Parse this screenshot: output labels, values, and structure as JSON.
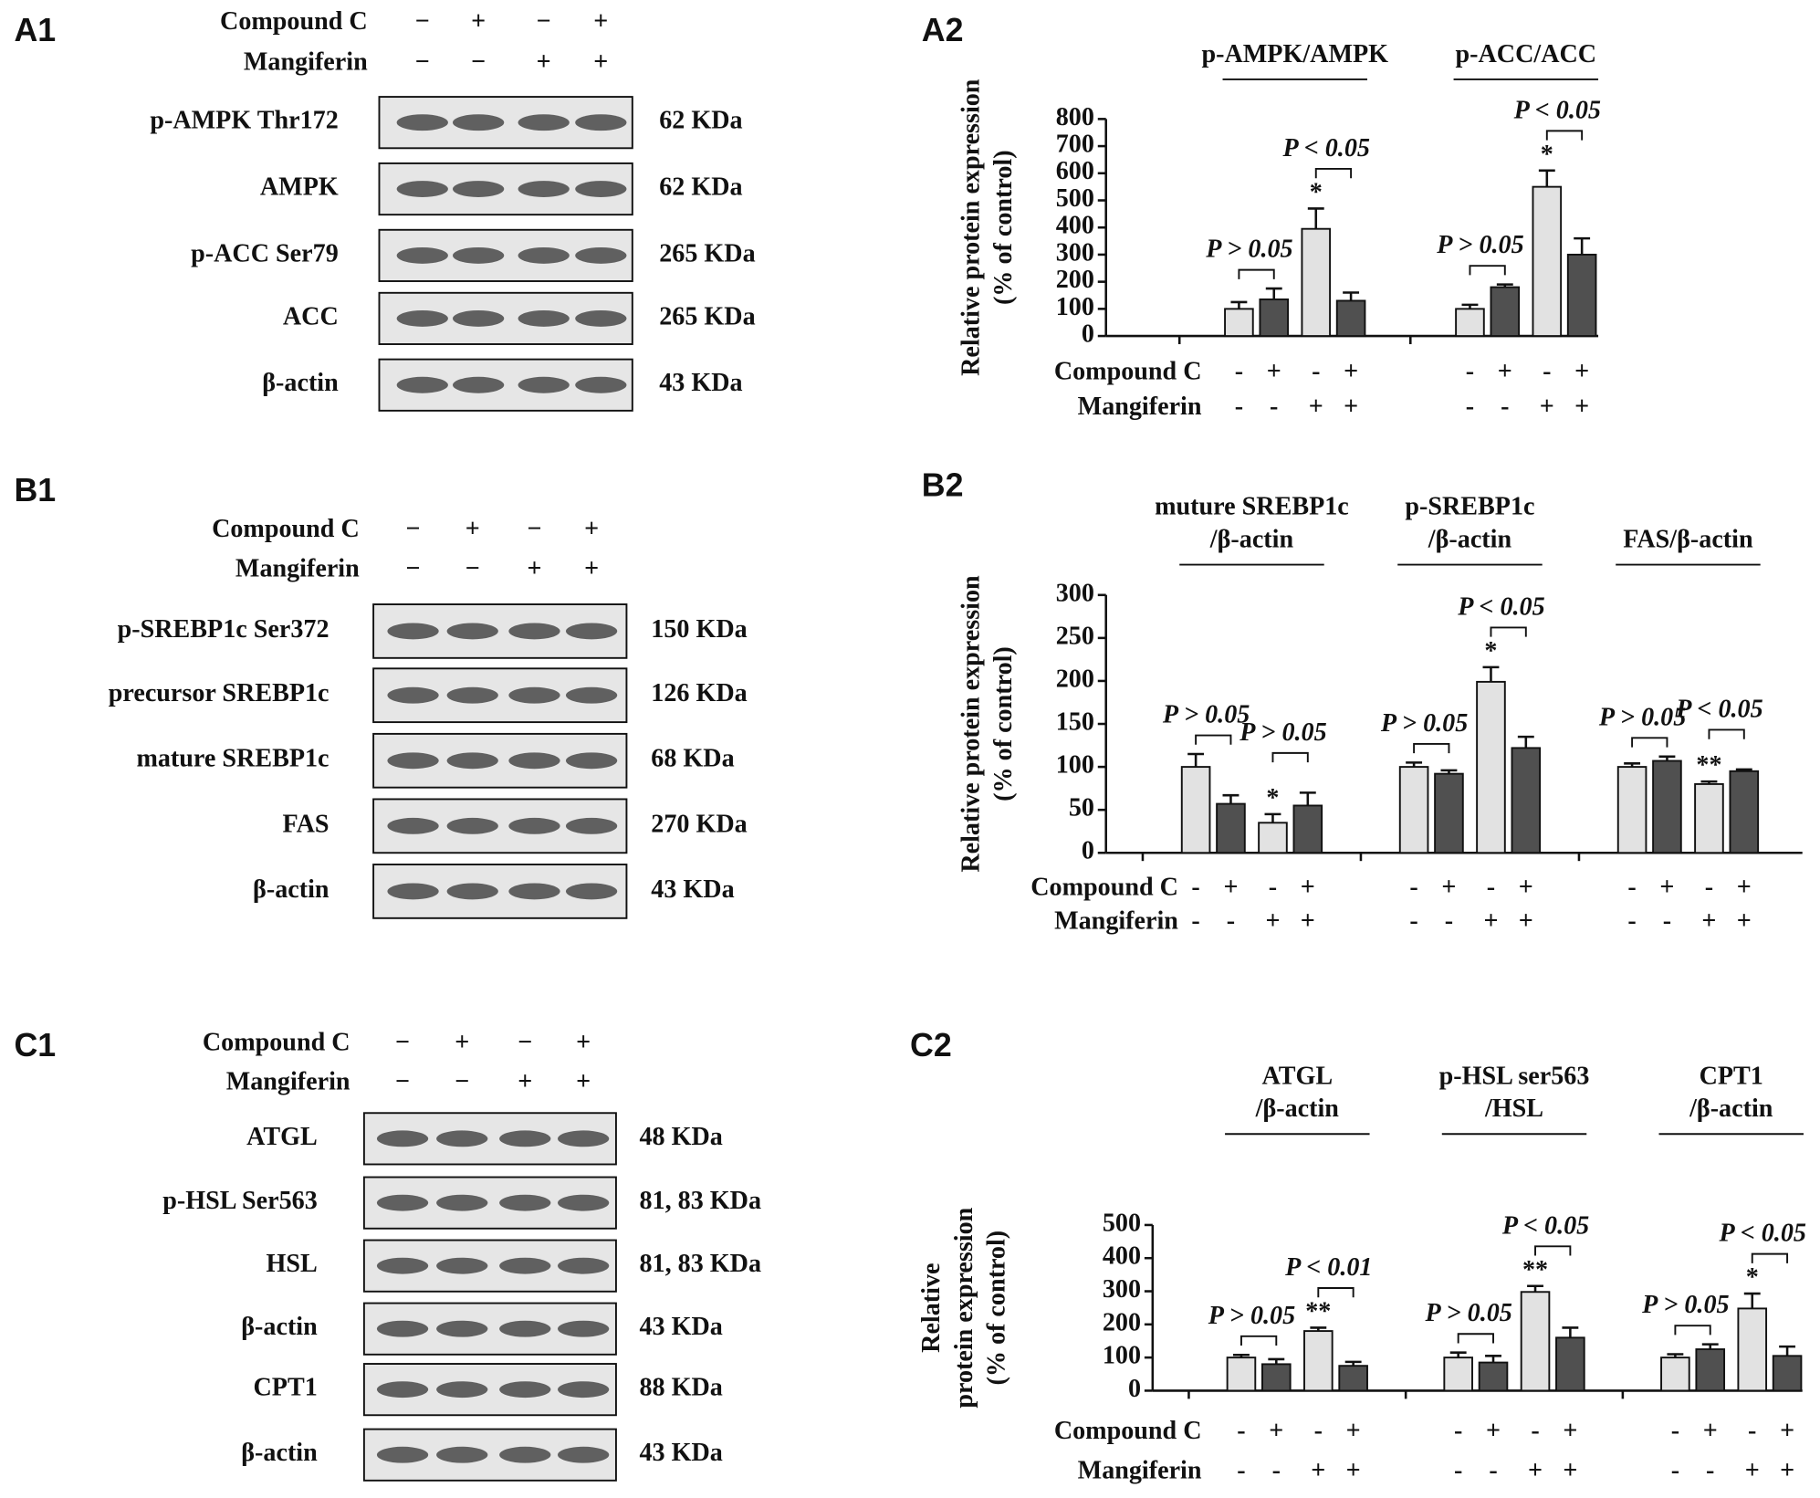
{
  "blots": [
    {
      "label": "A1",
      "treatments": [
        {
          "name": "Compound C",
          "signs": [
            "−",
            "+",
            "−",
            "+"
          ]
        },
        {
          "name": "Mangiferin",
          "signs": [
            "−",
            "−",
            "+",
            "+"
          ]
        }
      ],
      "rows": [
        {
          "protein": "p-AMPK Thr172",
          "size": "62 KDa"
        },
        {
          "protein": "AMPK",
          "size": "62 KDa"
        },
        {
          "protein": "p-ACC Ser79",
          "size": "265 KDa"
        },
        {
          "protein": "ACC",
          "size": "265 KDa"
        },
        {
          "protein": "β-actin",
          "size": "43 KDa"
        }
      ]
    },
    {
      "label": "B1",
      "treatments": [
        {
          "name": "Compound C",
          "signs": [
            "−",
            "+",
            "−",
            "+"
          ]
        },
        {
          "name": "Mangiferin",
          "signs": [
            "−",
            "−",
            "+",
            "+"
          ]
        }
      ],
      "rows": [
        {
          "protein": "p-SREBP1c Ser372",
          "size": "150 KDa"
        },
        {
          "protein": "precursor SREBP1c",
          "size": "126 KDa"
        },
        {
          "protein": "mature SREBP1c",
          "size": "68 KDa"
        },
        {
          "protein": "FAS",
          "size": "270 KDa"
        },
        {
          "protein": "β-actin",
          "size": "43 KDa"
        }
      ]
    },
    {
      "label": "C1",
      "treatments": [
        {
          "name": "Compound C",
          "signs": [
            "−",
            "+",
            "−",
            "+"
          ]
        },
        {
          "name": "Mangiferin",
          "signs": [
            "−",
            "−",
            "+",
            "+"
          ]
        }
      ],
      "rows": [
        {
          "protein": "ATGL",
          "size": "48 KDa"
        },
        {
          "protein": "p-HSL  Ser563",
          "size": "81, 83 KDa"
        },
        {
          "protein": "HSL",
          "size": "81, 83 KDa"
        },
        {
          "protein": "β-actin",
          "size": "43 KDa"
        },
        {
          "protein": "CPT1",
          "size": "88 KDa"
        },
        {
          "protein": "β-actin",
          "size": "43 KDa"
        }
      ]
    }
  ],
  "chart_data": [
    {
      "type": "bar",
      "label": "A2",
      "ylabel": [
        "Relative protein expression",
        "(% of control)"
      ],
      "ylim": [
        0,
        800
      ],
      "yticks": [
        0,
        100,
        200,
        300,
        400,
        500,
        600,
        700,
        800
      ],
      "bar_colors": [
        "#e2e2e2",
        "#505050",
        "#e2e2e2",
        "#505050"
      ],
      "treatments": [
        {
          "name": "Compound C",
          "signs": [
            "-",
            "+",
            "-",
            "+"
          ]
        },
        {
          "name": "Mangiferin",
          "signs": [
            "-",
            "-",
            "+",
            "+"
          ]
        }
      ],
      "groups": [
        {
          "title": [
            "p-AMPK/AMPK"
          ],
          "values": [
            100,
            135,
            395,
            130
          ],
          "errors": [
            25,
            40,
            75,
            30
          ],
          "stars": [
            null,
            null,
            "*",
            null
          ],
          "comparisons": [
            "P > 0.05",
            "P < 0.05"
          ]
        },
        {
          "title": [
            "p-ACC/ACC"
          ],
          "values": [
            100,
            180,
            550,
            300
          ],
          "errors": [
            15,
            10,
            60,
            60
          ],
          "stars": [
            null,
            null,
            "*",
            null
          ],
          "comparisons": [
            "P > 0.05",
            "P < 0.05"
          ]
        }
      ]
    },
    {
      "type": "bar",
      "label": "B2",
      "ylabel": [
        "Relative protein expression",
        "(% of control)"
      ],
      "ylim": [
        0,
        300
      ],
      "yticks": [
        0,
        50,
        100,
        150,
        200,
        250,
        300
      ],
      "bar_colors": [
        "#e2e2e2",
        "#505050",
        "#e2e2e2",
        "#505050"
      ],
      "treatments": [
        {
          "name": "Compound C",
          "signs": [
            "-",
            "+",
            "-",
            "+"
          ]
        },
        {
          "name": "Mangiferin",
          "signs": [
            "-",
            "-",
            "+",
            "+"
          ]
        }
      ],
      "groups": [
        {
          "title": [
            "muture SREBP1c",
            "/β-actin"
          ],
          "values": [
            100,
            57,
            35,
            55
          ],
          "errors": [
            15,
            10,
            10,
            15
          ],
          "stars": [
            null,
            null,
            "*",
            null
          ],
          "comparisons": [
            "P > 0.05",
            "P > 0.05"
          ]
        },
        {
          "title": [
            "p-SREBP1c",
            "/β-actin"
          ],
          "values": [
            100,
            92,
            199,
            122
          ],
          "errors": [
            5,
            4,
            17,
            13
          ],
          "stars": [
            null,
            null,
            "*",
            null
          ],
          "comparisons": [
            "P > 0.05",
            "P < 0.05"
          ]
        },
        {
          "title": [
            "FAS/β-actin"
          ],
          "values": [
            100,
            107,
            80,
            95
          ],
          "errors": [
            4,
            5,
            3,
            2
          ],
          "stars": [
            null,
            null,
            "**",
            null
          ],
          "comparisons": [
            "P > 0.05",
            "P < 0.05"
          ]
        }
      ]
    },
    {
      "type": "bar",
      "label": "C2",
      "ylabel": [
        "Relative",
        "protein expression",
        "(% of control)"
      ],
      "ylim": [
        0,
        500
      ],
      "yticks": [
        0,
        100,
        200,
        300,
        400,
        500
      ],
      "bar_colors": [
        "#e2e2e2",
        "#505050",
        "#e2e2e2",
        "#505050"
      ],
      "treatments": [
        {
          "name": "Compound C",
          "signs": [
            "-",
            "+",
            "-",
            "+"
          ]
        },
        {
          "name": "Mangiferin",
          "signs": [
            "-",
            "-",
            "+",
            "+"
          ]
        }
      ],
      "groups": [
        {
          "title": [
            "ATGL",
            "/β-actin"
          ],
          "values": [
            100,
            80,
            180,
            75
          ],
          "errors": [
            8,
            15,
            10,
            12
          ],
          "stars": [
            null,
            null,
            "**",
            null
          ],
          "comparisons": [
            "P > 0.05",
            "P < 0.01"
          ]
        },
        {
          "title": [
            "p-HSL ser563",
            "/HSL"
          ],
          "values": [
            100,
            85,
            298,
            160
          ],
          "errors": [
            15,
            20,
            18,
            30
          ],
          "stars": [
            null,
            null,
            "**",
            null
          ],
          "comparisons": [
            "P > 0.05",
            "P < 0.05"
          ]
        },
        {
          "title": [
            "CPT1",
            "/β-actin"
          ],
          "values": [
            100,
            125,
            248,
            105
          ],
          "errors": [
            10,
            15,
            45,
            28
          ],
          "stars": [
            null,
            null,
            "*",
            null
          ],
          "comparisons": [
            "P > 0.05",
            "P < 0.05"
          ]
        }
      ]
    }
  ]
}
